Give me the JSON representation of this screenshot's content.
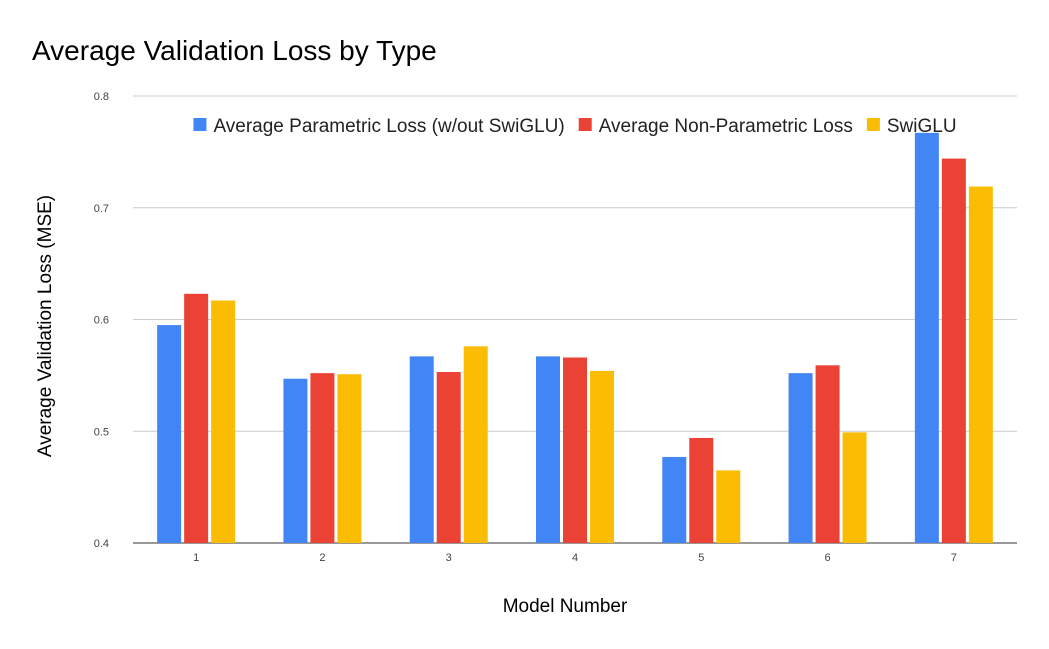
{
  "chart_data": {
    "type": "bar",
    "title": "Average Validation Loss by Type",
    "xlabel": "Model Number",
    "ylabel": "Average Validation Loss (MSE)",
    "categories": [
      "1",
      "2",
      "3",
      "4",
      "5",
      "6",
      "7"
    ],
    "series": [
      {
        "name": "Average Parametric Loss (w/out SwiGLU)",
        "color": "#4285F4",
        "values": [
          0.595,
          0.547,
          0.567,
          0.567,
          0.477,
          0.552,
          0.767
        ]
      },
      {
        "name": "Average Non-Parametric Loss",
        "color": "#EA4335",
        "values": [
          0.623,
          0.552,
          0.553,
          0.566,
          0.494,
          0.559,
          0.744
        ]
      },
      {
        "name": "SwiGLU",
        "color": "#FBBC04",
        "values": [
          0.617,
          0.551,
          0.576,
          0.554,
          0.465,
          0.499,
          0.719
        ]
      }
    ],
    "ylim": [
      0.4,
      0.8
    ],
    "yticks": [
      "0.4",
      "0.5",
      "0.6",
      "0.7",
      "0.8"
    ],
    "grid": true,
    "legend_position": "top"
  }
}
